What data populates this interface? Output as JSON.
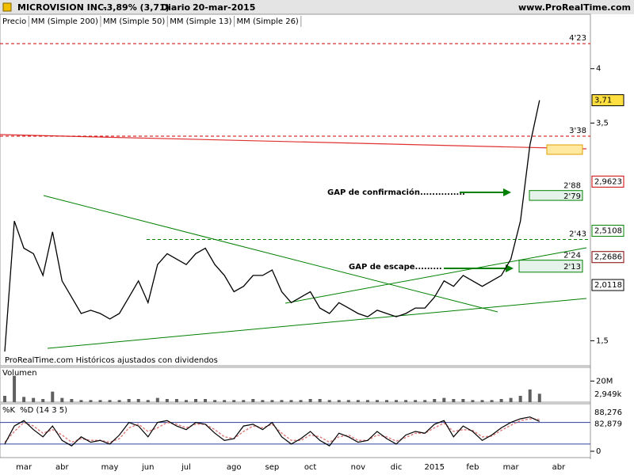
{
  "header": {
    "symbol": "MICROVISION INC.",
    "change": "-3,89% (3,71)",
    "period": "Diario",
    "date": "20-mar-2015",
    "site": "www.ProRealTime.com"
  },
  "chart_data": [
    {
      "type": "line",
      "legend": [
        {
          "name": "Precio",
          "color": "#000000"
        },
        {
          "name": "MM (Simple 200)",
          "color": "#000000"
        },
        {
          "name": "MM (Simple 50)",
          "color": "#0000cc"
        },
        {
          "name": "MM (Simple 13)",
          "color": "#cc0000"
        },
        {
          "name": "MM (Simple 26)",
          "color": "#008000"
        }
      ],
      "categories": [
        null,
        null,
        "mar",
        null,
        null,
        null,
        "abr",
        null,
        null,
        null,
        null,
        "may",
        null,
        null,
        null,
        "jun",
        null,
        null,
        null,
        "jul",
        null,
        null,
        null,
        null,
        "ago",
        null,
        null,
        null,
        "sep",
        null,
        null,
        null,
        "oct",
        null,
        null,
        null,
        null,
        "nov",
        null,
        null,
        null,
        "dic",
        null,
        null,
        null,
        "2015",
        null,
        null,
        null,
        "feb",
        null,
        null,
        null,
        "mar",
        null,
        null,
        null,
        null,
        "abr",
        null,
        null
      ],
      "series": [
        {
          "name": "Precio",
          "color": "#000000",
          "values": [
            1.4,
            2.6,
            2.35,
            2.3,
            2.1,
            2.5,
            2.05,
            1.9,
            1.75,
            1.78,
            1.75,
            1.7,
            1.75,
            1.9,
            2.05,
            1.85,
            2.2,
            2.3,
            2.25,
            2.2,
            2.3,
            2.35,
            2.2,
            2.1,
            1.95,
            2.0,
            2.1,
            2.1,
            2.15,
            1.95,
            1.85,
            1.9,
            1.95,
            1.8,
            1.75,
            1.85,
            1.8,
            1.75,
            1.72,
            1.78,
            1.75,
            1.72,
            1.75,
            1.8,
            1.8,
            1.9,
            2.05,
            2.0,
            2.1,
            2.05,
            2.0,
            2.05,
            2.1,
            2.25,
            2.6,
            3.3,
            3.71,
            null,
            null,
            null,
            null
          ]
        }
      ],
      "ylim": [
        1.27,
        4.5
      ],
      "yticks": [
        {
          "value": 1.5,
          "label": "1,5"
        },
        {
          "value": 3.5,
          "label": "3,5"
        },
        {
          "value": 4,
          "label": "4"
        }
      ],
      "levels": [
        {
          "value": 4.23,
          "label": "4'23",
          "color": "#cc0000"
        },
        {
          "value": 3.38,
          "label": "3'38",
          "color": "#cc0000"
        },
        {
          "value": 2.43,
          "label": "2'43",
          "color": "#008000"
        }
      ],
      "price_labels": [
        {
          "value": 3.71,
          "label": "3,71",
          "color": "#000000"
        },
        {
          "value": 2.9623,
          "label": "2,9623",
          "color": "#cc0000"
        },
        {
          "value": 2.5108,
          "label": "2,5108",
          "color": "#008000"
        },
        {
          "value": 2.2686,
          "label": "2,2686",
          "color": "#800000"
        },
        {
          "value": 2.0118,
          "label": "2,0118",
          "color": "#000000"
        }
      ],
      "gaps": [
        {
          "top": 2.88,
          "bottom": 2.79,
          "top_label": "2'88",
          "bottom_label": "2'79",
          "text": "GAP de confirmación..............."
        },
        {
          "top": 2.24,
          "bottom": 2.13,
          "top_label": "2'24",
          "bottom_label": "2'13",
          "text": "GAP de escape........."
        }
      ],
      "note": "ProRealTime.com  Históricos ajustados con dividendos"
    },
    {
      "type": "bar",
      "title": "Volumen",
      "color": "#606060",
      "values": [
        6,
        25,
        5,
        4,
        3,
        10,
        4,
        3,
        2,
        2,
        2,
        2,
        2,
        3,
        3,
        2,
        4,
        3,
        3,
        2,
        3,
        3,
        2,
        2,
        2,
        2,
        3,
        2,
        2,
        2,
        2,
        2,
        3,
        3,
        2,
        2,
        2,
        2,
        2,
        2,
        2,
        2,
        2,
        2,
        2,
        3,
        4,
        3,
        3,
        2,
        2,
        2,
        3,
        4,
        6,
        12,
        8,
        null,
        null,
        null,
        null
      ],
      "ylim": [
        0,
        33
      ],
      "yticks": [
        {
          "value": 20,
          "label": "20M"
        }
      ],
      "last": {
        "value": 2.949,
        "label": "2,949k"
      }
    },
    {
      "type": "line",
      "legend": [
        {
          "name": "%K",
          "color": "#000000"
        },
        {
          "name": "%D (14 3 5)",
          "color": "#e08080"
        }
      ],
      "series": [
        {
          "name": "%K",
          "color": "#000000",
          "values": [
            20,
            70,
            85,
            60,
            40,
            70,
            30,
            15,
            40,
            25,
            30,
            20,
            45,
            80,
            70,
            40,
            80,
            85,
            70,
            60,
            80,
            75,
            50,
            30,
            35,
            70,
            75,
            60,
            80,
            40,
            20,
            35,
            55,
            30,
            15,
            50,
            40,
            25,
            30,
            55,
            35,
            20,
            45,
            55,
            50,
            75,
            85,
            40,
            70,
            55,
            30,
            45,
            65,
            80,
            90,
            95,
            82.879,
            null,
            null,
            null,
            null
          ]
        },
        {
          "name": "%D (14 3 5)",
          "color": "#e08080",
          "values": [
            25,
            55,
            80,
            70,
            50,
            60,
            45,
            25,
            35,
            30,
            30,
            25,
            35,
            65,
            75,
            55,
            65,
            80,
            75,
            65,
            75,
            75,
            60,
            40,
            35,
            55,
            70,
            65,
            75,
            50,
            30,
            30,
            45,
            40,
            25,
            40,
            45,
            30,
            30,
            45,
            40,
            28,
            38,
            50,
            50,
            65,
            78,
            55,
            60,
            58,
            40,
            42,
            58,
            72,
            85,
            90,
            88.276,
            null,
            null,
            null,
            null
          ]
        }
      ],
      "ylim": [
        0,
        123
      ],
      "yticks": [
        0
      ],
      "bands": [
        20,
        80
      ],
      "last": [
        {
          "value": 88.276,
          "label": "88,276",
          "color": "#e08080"
        },
        {
          "value": 82.879,
          "label": "82,879",
          "color": "#000000"
        }
      ]
    }
  ]
}
